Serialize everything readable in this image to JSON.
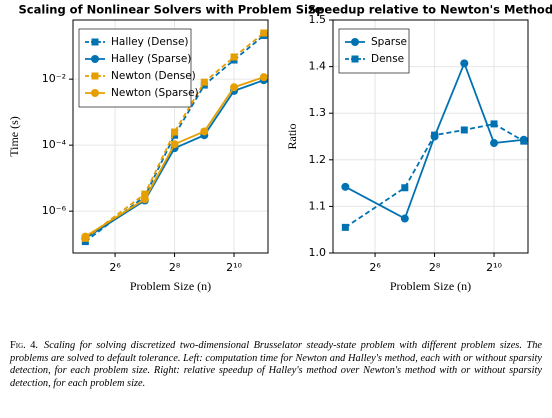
{
  "chart_data": [
    {
      "type": "line",
      "title": "Scaling of Nonlinear Solvers with Problem Size",
      "x_label": "Problem Size (n)",
      "y_label": "Time (s)",
      "xscale": "log",
      "yscale": "log",
      "grid": true,
      "legend": "top-left",
      "x": [
        32,
        128,
        256,
        512,
        1024,
        2048
      ],
      "xlim": [
        24,
        2260
      ],
      "xticks": [
        {
          "value": 64,
          "label": "2⁶"
        },
        {
          "value": 256,
          "label": "2⁸"
        },
        {
          "value": 1024,
          "label": "2¹⁰"
        }
      ],
      "ylim": [
        5.4e-08,
        0.62
      ],
      "yticks": [
        {
          "value": 1e-06,
          "label": "10⁻⁶"
        },
        {
          "value": 0.0001,
          "label": "10⁻⁴"
        },
        {
          "value": 0.01,
          "label": "10⁻²"
        }
      ],
      "series": [
        {
          "name": "Halley (Dense)",
          "color": "#0072b2",
          "style": "dashed",
          "marker": "square",
          "values": [
            1.2e-07,
            2.8e-06,
            0.0002,
            0.0066,
            0.038,
            0.21
          ]
        },
        {
          "name": "Halley (Sparse)",
          "color": "#0072b2",
          "style": "solid",
          "marker": "circle",
          "values": [
            1.5e-07,
            2.1e-06,
            8.1e-05,
            0.0002,
            0.0044,
            0.0093
          ]
        },
        {
          "name": "Newton (Dense)",
          "color": "#e69f00",
          "style": "dashed",
          "marker": "square",
          "values": [
            1.5e-07,
            3.3e-06,
            0.00025,
            0.0081,
            0.047,
            0.25
          ]
        },
        {
          "name": "Newton (Sparse)",
          "color": "#e69f00",
          "style": "solid",
          "marker": "circle",
          "values": [
            1.7e-07,
            2.3e-06,
            0.000107,
            0.00026,
            0.0057,
            0.0115
          ]
        }
      ]
    },
    {
      "type": "line",
      "title": "Speedup relative to Newton's Method",
      "x_label": "Problem Size (n)",
      "y_label": "Ratio",
      "xscale": "log",
      "yscale": "linear",
      "grid": true,
      "legend": "top-left",
      "x": [
        32,
        128,
        256,
        512,
        1024,
        2048
      ],
      "xlim": [
        24,
        2260
      ],
      "xticks": [
        {
          "value": 64,
          "label": "2⁶"
        },
        {
          "value": 256,
          "label": "2⁸"
        },
        {
          "value": 1024,
          "label": "2¹⁰"
        }
      ],
      "ylim": [
        1.0,
        1.5
      ],
      "yticks": [
        {
          "value": 1,
          "label": "1.0"
        },
        1.1,
        1.2,
        1.3,
        1.4,
        1.5
      ],
      "series": [
        {
          "name": "Sparse",
          "color": "#0072b2",
          "style": "solid",
          "marker": "circle",
          "values": [
            1.142,
            1.074,
            1.25,
            1.407,
            1.236,
            1.243
          ]
        },
        {
          "name": "Dense",
          "color": "#0072b2",
          "style": "dashed",
          "marker": "square",
          "values": [
            1.055,
            1.14,
            1.253,
            1.264,
            1.277,
            1.24
          ]
        }
      ]
    }
  ],
  "caption": {
    "label": "Fig. 4.",
    "text": "Scaling for solving discretized two-dimensional Brusselator steady-state problem with different problem sizes. The problems are solved to default tolerance. Left: computation time for Newton and Halley's method, each with or without sparsity detection, for each problem size. Right: relative speedup of Halley's method over Newton's method with or without sparsity detection, for each problem size."
  }
}
